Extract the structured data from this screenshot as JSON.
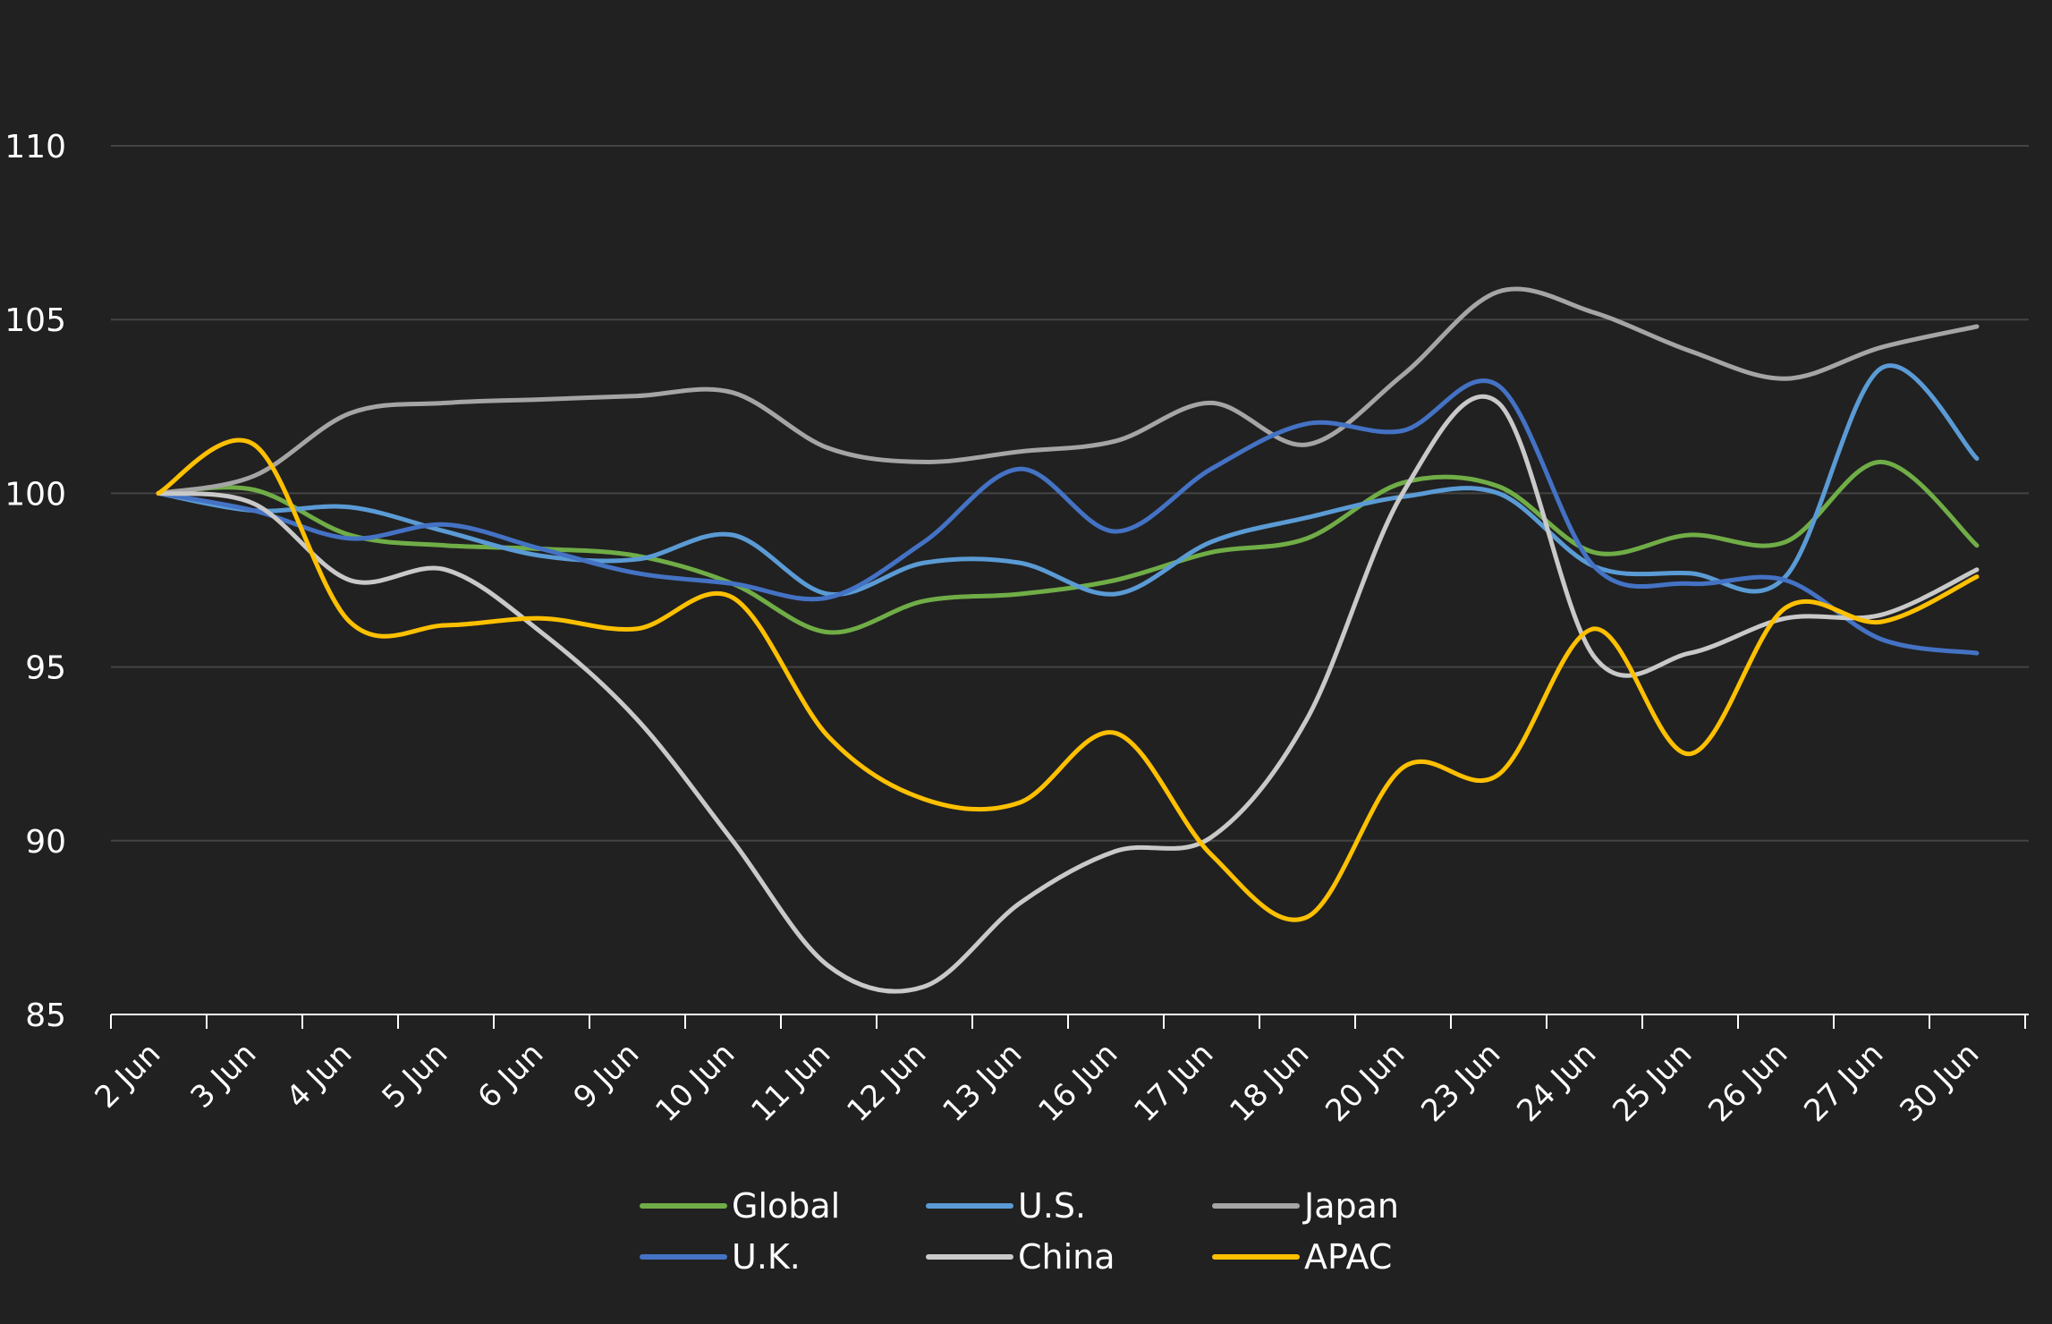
{
  "chart_data": {
    "type": "line",
    "title": "",
    "xlabel": "",
    "ylabel": "",
    "ylim": [
      85,
      110
    ],
    "yticks": [
      85,
      90,
      95,
      100,
      105,
      110
    ],
    "grid": true,
    "legend_position": "bottom",
    "categories": [
      "2 Jun",
      "3 Jun",
      "4 Jun",
      "5 Jun",
      "6 Jun",
      "9 Jun",
      "10 Jun",
      "11 Jun",
      "12 Jun",
      "13 Jun",
      "16 Jun",
      "17 Jun",
      "18 Jun",
      "20 Jun",
      "23 Jun",
      "24 Jun",
      "25 Jun",
      "26 Jun",
      "27 Jun",
      "30 Jun"
    ],
    "series": [
      {
        "name": "Global",
        "color": "#70AD47",
        "values": [
          100.0,
          100.1,
          98.8,
          98.5,
          98.4,
          98.2,
          97.4,
          96.0,
          96.9,
          97.1,
          97.5,
          98.3,
          98.7,
          100.3,
          100.2,
          98.3,
          98.8,
          98.6,
          100.9,
          98.5
        ]
      },
      {
        "name": "U.S.",
        "color": "#5B9BD5",
        "values": [
          100.0,
          99.5,
          99.6,
          98.9,
          98.2,
          98.1,
          98.8,
          97.1,
          98.0,
          98.0,
          97.1,
          98.6,
          99.3,
          99.9,
          100.0,
          97.9,
          97.7,
          97.6,
          103.6,
          101.0
        ]
      },
      {
        "name": "Japan",
        "color": "#A5A5A5",
        "values": [
          100.0,
          100.5,
          102.3,
          102.6,
          102.7,
          102.8,
          102.9,
          101.3,
          100.9,
          101.2,
          101.5,
          102.6,
          101.4,
          103.4,
          105.8,
          105.2,
          104.1,
          103.3,
          104.2,
          104.8
        ]
      },
      {
        "name": "U.K.",
        "color": "#4472C4",
        "values": [
          100.0,
          99.5,
          98.7,
          99.1,
          98.4,
          97.7,
          97.4,
          97.0,
          98.6,
          100.7,
          98.9,
          100.7,
          102.0,
          101.8,
          103.1,
          97.9,
          97.4,
          97.5,
          95.8,
          95.4
        ]
      },
      {
        "name": "China",
        "color": "#C9C9C9",
        "values": [
          100.0,
          99.7,
          97.5,
          97.8,
          96.0,
          93.5,
          90.0,
          86.4,
          85.8,
          88.2,
          89.7,
          90.1,
          93.5,
          100.0,
          102.6,
          95.3,
          95.4,
          96.4,
          96.5,
          97.8
        ]
      },
      {
        "name": "APAC",
        "color": "#FFC000",
        "values": [
          100.0,
          101.4,
          96.3,
          96.2,
          96.4,
          96.1,
          97.0,
          93.0,
          91.2,
          91.1,
          93.1,
          89.6,
          87.8,
          92.1,
          91.9,
          96.1,
          92.5,
          96.7,
          96.3,
          97.6
        ]
      }
    ]
  }
}
